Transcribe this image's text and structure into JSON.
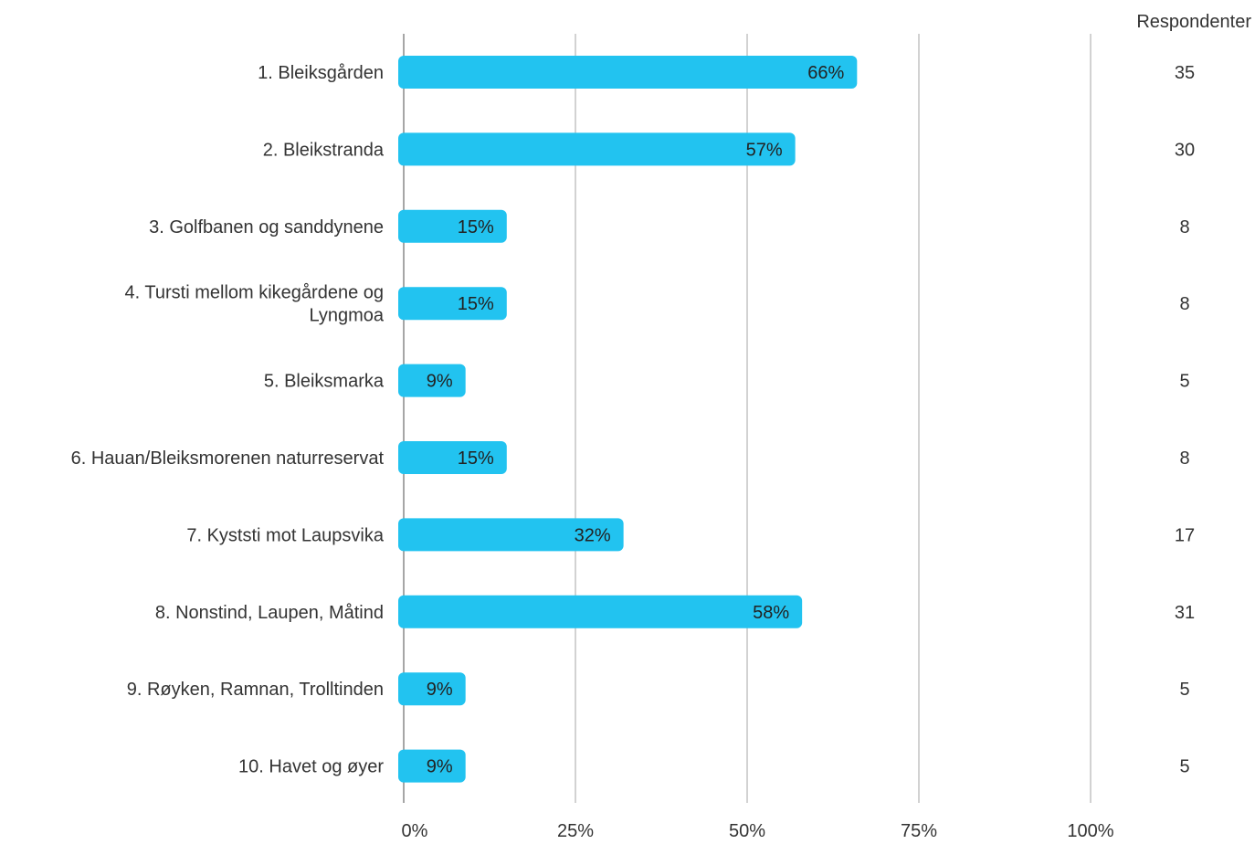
{
  "chart_data": {
    "type": "bar",
    "orientation": "horizontal",
    "categories": [
      "1. Bleiksgården",
      "2. Bleikstranda",
      "3. Golfbanen og sanddynene",
      "4. Tursti mellom kikegårdene og Lyngmoa",
      "5. Bleiksmarka",
      "6. Hauan/Bleiksmorenen naturreservat",
      "7. Kyststi mot Laupsvika",
      "8. Nonstind, Laupen, Måtind",
      "9. Røyken, Ramnan, Trolltinden",
      "10. Havet og øyer"
    ],
    "category_lines": [
      [
        "1. Bleiksgården"
      ],
      [
        "2. Bleikstranda"
      ],
      [
        "3. Golfbanen og sanddynene"
      ],
      [
        "4. Tursti mellom kikegårdene og",
        "Lyngmoa"
      ],
      [
        "5. Bleiksmarka"
      ],
      [
        "6. Hauan/Bleiksmorenen naturreservat"
      ],
      [
        "7. Kyststi mot Laupsvika"
      ],
      [
        "8. Nonstind, Laupen, Måtind"
      ],
      [
        "9. Røyken, Ramnan, Trolltinden"
      ],
      [
        "10. Havet og øyer"
      ]
    ],
    "values": [
      66,
      57,
      15,
      15,
      9,
      15,
      32,
      58,
      9,
      9
    ],
    "value_labels": [
      "66%",
      "57%",
      "15%",
      "15%",
      "9%",
      "15%",
      "32%",
      "58%",
      "9%",
      "9%"
    ],
    "respondents_header": "Respondenter",
    "respondents": [
      "35",
      "30",
      "8",
      "8",
      "5",
      "8",
      "17",
      "31",
      "5",
      "5"
    ],
    "x_ticks": [
      0,
      25,
      50,
      75,
      100
    ],
    "x_tick_labels": [
      "0%",
      "25%",
      "50%",
      "75%",
      "100%"
    ],
    "xlim": [
      0,
      100
    ],
    "grid": true,
    "title": "",
    "xlabel": "",
    "ylabel": "",
    "colors": {
      "bar": "#22c3f0",
      "grid": "#a6a6a6",
      "axis": "#a6a6a6",
      "text": "#333333"
    }
  }
}
